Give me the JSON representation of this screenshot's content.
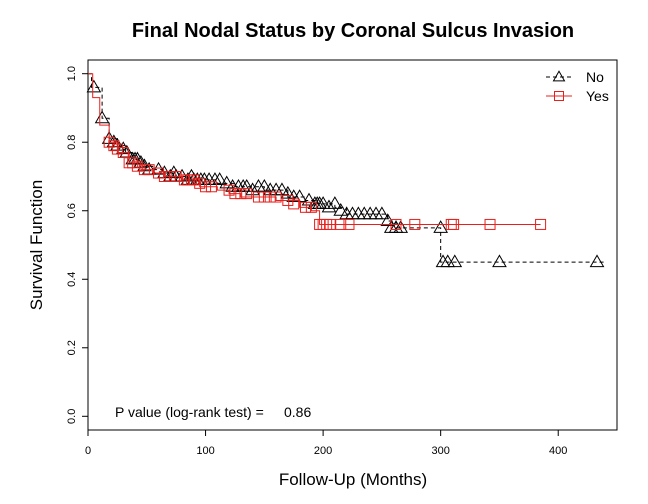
{
  "chart_data": {
    "type": "line",
    "title": "Final Nodal Status by Coronal Sulcus Invasion",
    "xlabel": "Follow-Up (Months)",
    "ylabel": "Survival Function",
    "xlim": [
      0,
      450
    ],
    "ylim": [
      -0.04,
      1.04
    ],
    "x_ticks": [
      0,
      100,
      200,
      300,
      400
    ],
    "y_ticks": [
      0.0,
      0.2,
      0.4,
      0.6,
      0.8,
      1.0
    ],
    "x_tick_labels": [
      "0",
      "100",
      "200",
      "300",
      "400"
    ],
    "y_tick_labels": [
      "0.0",
      "0.2",
      "0.4",
      "0.6",
      "0.8",
      "1.0"
    ],
    "legend_position": "top-right",
    "annotation": {
      "label": "P value (log-rank test) =",
      "value": "0.86"
    },
    "series": [
      {
        "name": "No",
        "color": "#000000",
        "line_style": "dashed",
        "marker": "triangle",
        "steps": [
          [
            0,
            1.0
          ],
          [
            3,
            0.96
          ],
          [
            12,
            0.87
          ],
          [
            18,
            0.81
          ],
          [
            25,
            0.79
          ],
          [
            32,
            0.77
          ],
          [
            38,
            0.75
          ],
          [
            45,
            0.73
          ],
          [
            55,
            0.72
          ],
          [
            65,
            0.71
          ],
          [
            75,
            0.7
          ],
          [
            85,
            0.69
          ],
          [
            110,
            0.68
          ],
          [
            125,
            0.67
          ],
          [
            150,
            0.66
          ],
          [
            170,
            0.64
          ],
          [
            185,
            0.63
          ],
          [
            195,
            0.62
          ],
          [
            210,
            0.61
          ],
          [
            220,
            0.59
          ],
          [
            255,
            0.57
          ],
          [
            262,
            0.55
          ],
          [
            300,
            0.45
          ],
          [
            440,
            0.45
          ]
        ],
        "censor_marks": [
          [
            5,
            0.96
          ],
          [
            12,
            0.87
          ],
          [
            18,
            0.81
          ],
          [
            22,
            0.8
          ],
          [
            25,
            0.79
          ],
          [
            30,
            0.78
          ],
          [
            33,
            0.77
          ],
          [
            38,
            0.75
          ],
          [
            40,
            0.75
          ],
          [
            42,
            0.75
          ],
          [
            45,
            0.74
          ],
          [
            48,
            0.73
          ],
          [
            52,
            0.72
          ],
          [
            60,
            0.72
          ],
          [
            65,
            0.71
          ],
          [
            70,
            0.7
          ],
          [
            73,
            0.71
          ],
          [
            75,
            0.7
          ],
          [
            80,
            0.7
          ],
          [
            85,
            0.69
          ],
          [
            88,
            0.7
          ],
          [
            90,
            0.69
          ],
          [
            93,
            0.69
          ],
          [
            96,
            0.69
          ],
          [
            99,
            0.69
          ],
          [
            103,
            0.69
          ],
          [
            108,
            0.69
          ],
          [
            112,
            0.69
          ],
          [
            118,
            0.68
          ],
          [
            123,
            0.67
          ],
          [
            128,
            0.67
          ],
          [
            132,
            0.67
          ],
          [
            135,
            0.67
          ],
          [
            140,
            0.66
          ],
          [
            145,
            0.67
          ],
          [
            150,
            0.67
          ],
          [
            155,
            0.66
          ],
          [
            160,
            0.66
          ],
          [
            165,
            0.66
          ],
          [
            170,
            0.65
          ],
          [
            175,
            0.64
          ],
          [
            180,
            0.64
          ],
          [
            188,
            0.63
          ],
          [
            193,
            0.62
          ],
          [
            195,
            0.62
          ],
          [
            197,
            0.62
          ],
          [
            200,
            0.62
          ],
          [
            205,
            0.61
          ],
          [
            210,
            0.62
          ],
          [
            215,
            0.6
          ],
          [
            220,
            0.59
          ],
          [
            225,
            0.59
          ],
          [
            230,
            0.59
          ],
          [
            235,
            0.59
          ],
          [
            240,
            0.59
          ],
          [
            245,
            0.59
          ],
          [
            250,
            0.59
          ],
          [
            255,
            0.57
          ],
          [
            258,
            0.55
          ],
          [
            262,
            0.55
          ],
          [
            266,
            0.55
          ],
          [
            300,
            0.55
          ],
          [
            302,
            0.45
          ],
          [
            306,
            0.45
          ],
          [
            312,
            0.45
          ],
          [
            350,
            0.45
          ],
          [
            433,
            0.45
          ]
        ]
      },
      {
        "name": "Yes",
        "color": "#e8201c",
        "line_style": "solid",
        "marker": "square",
        "steps": [
          [
            0,
            1.0
          ],
          [
            4,
            0.93
          ],
          [
            10,
            0.85
          ],
          [
            18,
            0.8
          ],
          [
            25,
            0.77
          ],
          [
            35,
            0.74
          ],
          [
            45,
            0.72
          ],
          [
            55,
            0.71
          ],
          [
            65,
            0.7
          ],
          [
            80,
            0.69
          ],
          [
            95,
            0.67
          ],
          [
            110,
            0.66
          ],
          [
            120,
            0.65
          ],
          [
            130,
            0.64
          ],
          [
            160,
            0.63
          ],
          [
            180,
            0.61
          ],
          [
            190,
            0.6
          ],
          [
            197,
            0.56
          ],
          [
            385,
            0.56
          ]
        ],
        "censor_marks": [
          [
            18,
            0.8
          ],
          [
            22,
            0.79
          ],
          [
            25,
            0.78
          ],
          [
            30,
            0.77
          ],
          [
            35,
            0.74
          ],
          [
            38,
            0.74
          ],
          [
            42,
            0.73
          ],
          [
            48,
            0.72
          ],
          [
            52,
            0.72
          ],
          [
            60,
            0.71
          ],
          [
            65,
            0.7
          ],
          [
            70,
            0.7
          ],
          [
            75,
            0.7
          ],
          [
            82,
            0.69
          ],
          [
            85,
            0.69
          ],
          [
            88,
            0.69
          ],
          [
            90,
            0.69
          ],
          [
            95,
            0.68
          ],
          [
            100,
            0.67
          ],
          [
            105,
            0.67
          ],
          [
            120,
            0.66
          ],
          [
            125,
            0.65
          ],
          [
            130,
            0.65
          ],
          [
            135,
            0.65
          ],
          [
            145,
            0.64
          ],
          [
            150,
            0.64
          ],
          [
            155,
            0.64
          ],
          [
            160,
            0.64
          ],
          [
            170,
            0.63
          ],
          [
            175,
            0.62
          ],
          [
            185,
            0.61
          ],
          [
            190,
            0.61
          ],
          [
            197,
            0.56
          ],
          [
            200,
            0.56
          ],
          [
            203,
            0.56
          ],
          [
            206,
            0.56
          ],
          [
            215,
            0.56
          ],
          [
            222,
            0.56
          ],
          [
            262,
            0.56
          ],
          [
            278,
            0.56
          ],
          [
            309,
            0.56
          ],
          [
            311,
            0.56
          ],
          [
            342,
            0.56
          ],
          [
            385,
            0.56
          ]
        ]
      }
    ]
  }
}
